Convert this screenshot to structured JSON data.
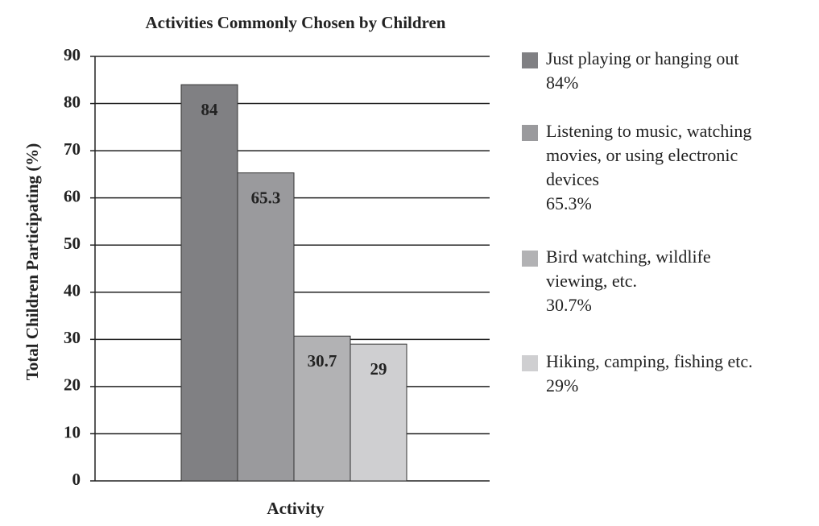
{
  "chart_data": {
    "type": "bar",
    "title": "Activities Commonly Chosen by Children",
    "x_label": "Activity",
    "y_label": "Total Children Participating (%)",
    "ylim": [
      0,
      90
    ],
    "yticks": [
      0,
      10,
      20,
      30,
      40,
      50,
      60,
      70,
      80,
      90
    ],
    "grid": true,
    "series": [
      {
        "name": "Just playing or hanging out",
        "color": "#808083",
        "values": [
          84
        ],
        "value_labels": [
          "84%"
        ]
      },
      {
        "name": "Listening to music, watching movies, or using electronic devices",
        "color": "#9a9a9d",
        "values": [
          65.3
        ],
        "value_labels": [
          "65.3%"
        ]
      },
      {
        "name": "Bird watching, wildlife viewing, etc.",
        "color": "#b2b2b4",
        "values": [
          30.7
        ],
        "value_labels": [
          "30.7%"
        ]
      },
      {
        "name": "Hiking, camping, fishing etc.",
        "color": "#cfcfd1",
        "values": [
          29
        ],
        "value_labels": [
          "29%"
        ]
      }
    ]
  }
}
